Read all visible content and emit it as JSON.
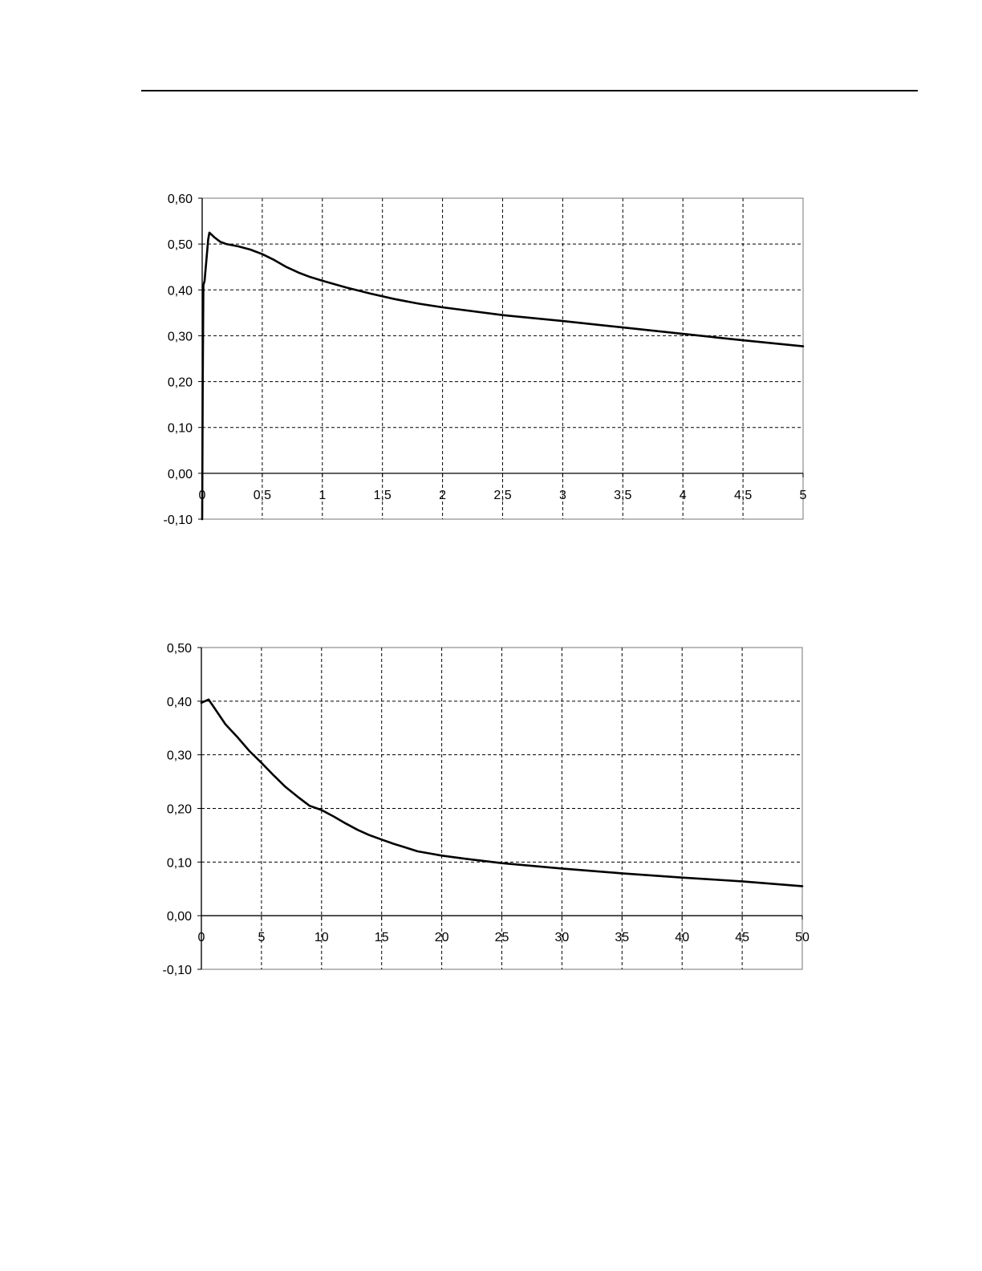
{
  "chart_data": [
    {
      "type": "line",
      "title": "",
      "xlabel": "",
      "ylabel": "",
      "xlim": [
        0,
        5
      ],
      "ylim": [
        -0.1,
        0.6
      ],
      "grid": true,
      "x_ticks": [
        0,
        0.5,
        1,
        1.5,
        2,
        2.5,
        3,
        3.5,
        4,
        4.5,
        5
      ],
      "x_tick_labels": [
        "0",
        "0,5",
        "1",
        "1,5",
        "2",
        "2,5",
        "3",
        "3,5",
        "4",
        "4,5",
        "5"
      ],
      "y_ticks": [
        -0.1,
        0,
        0.1,
        0.2,
        0.3,
        0.4,
        0.5,
        0.6
      ],
      "y_tick_labels": [
        "-0,10",
        "0,00",
        "0,10",
        "0,20",
        "0,30",
        "0,40",
        "0,50",
        "0,60"
      ],
      "series": [
        {
          "x": [
            0.0,
            0.005,
            0.01,
            0.02,
            0.03,
            0.04,
            0.05,
            0.06,
            0.08,
            0.1,
            0.15,
            0.2,
            0.3,
            0.4,
            0.5,
            0.6,
            0.7,
            0.8,
            0.9,
            1.0,
            1.2,
            1.4,
            1.6,
            1.8,
            2.0,
            2.5,
            3.0,
            3.5,
            4.0,
            4.5,
            5.0
          ],
          "y": [
            -0.1,
            0.2,
            0.41,
            0.42,
            0.45,
            0.48,
            0.51,
            0.525,
            0.52,
            0.515,
            0.505,
            0.5,
            0.495,
            0.488,
            0.478,
            0.465,
            0.45,
            0.438,
            0.428,
            0.42,
            0.405,
            0.392,
            0.38,
            0.37,
            0.362,
            0.345,
            0.332,
            0.318,
            0.304,
            0.29,
            0.277
          ]
        }
      ]
    },
    {
      "type": "line",
      "title": "",
      "xlabel": "",
      "ylabel": "",
      "xlim": [
        0,
        50
      ],
      "ylim": [
        -0.1,
        0.5
      ],
      "grid": true,
      "x_ticks": [
        0,
        5,
        10,
        15,
        20,
        25,
        30,
        35,
        40,
        45,
        50
      ],
      "x_tick_labels": [
        "0",
        "5",
        "10",
        "15",
        "20",
        "25",
        "30",
        "35",
        "40",
        "45",
        "50"
      ],
      "y_ticks": [
        -0.1,
        0,
        0.1,
        0.2,
        0.3,
        0.4,
        0.5
      ],
      "y_tick_labels": [
        "-0,10",
        "0,00",
        "0,10",
        "0,20",
        "0,30",
        "0,40",
        "0,50"
      ],
      "series": [
        {
          "x": [
            0.0,
            0.3,
            0.6,
            1.0,
            2.0,
            3.0,
            4.0,
            5.0,
            6.0,
            7.0,
            8.0,
            9.0,
            10.0,
            11.0,
            12.0,
            13.0,
            14.0,
            15.0,
            16.0,
            17.0,
            18.0,
            19.0,
            20.0,
            22.0,
            25.0,
            30.0,
            35.0,
            40.0,
            45.0,
            50.0
          ],
          "y": [
            0.397,
            0.4,
            0.403,
            0.39,
            0.357,
            0.333,
            0.307,
            0.285,
            0.262,
            0.24,
            0.222,
            0.205,
            0.197,
            0.185,
            0.172,
            0.16,
            0.15,
            0.142,
            0.134,
            0.127,
            0.12,
            0.116,
            0.112,
            0.106,
            0.098,
            0.088,
            0.079,
            0.071,
            0.064,
            0.055
          ]
        }
      ]
    }
  ]
}
